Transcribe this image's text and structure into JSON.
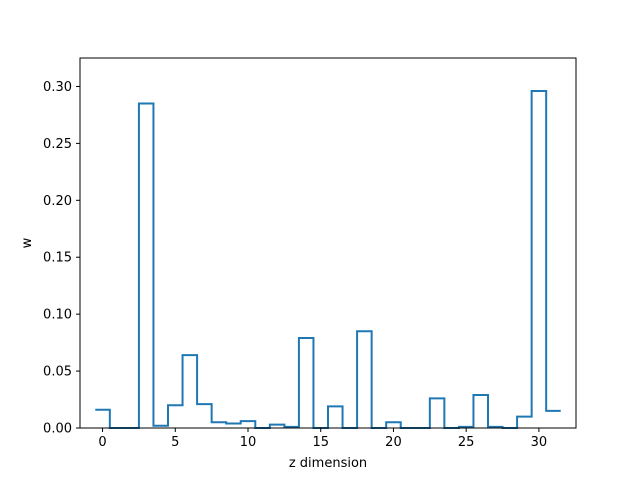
{
  "chart_data": {
    "type": "line",
    "style": "step",
    "xlabel": "z dimension",
    "ylabel": "w",
    "xlim": [
      -1.55,
      32.55
    ],
    "ylim": [
      0.0,
      0.325
    ],
    "x_ticks": [
      0,
      5,
      10,
      15,
      20,
      25,
      30
    ],
    "x_tick_labels": [
      "0",
      "5",
      "10",
      "15",
      "20",
      "25",
      "30"
    ],
    "y_ticks": [
      0.0,
      0.05,
      0.1,
      0.15,
      0.2,
      0.25,
      0.3
    ],
    "y_tick_labels": [
      "0.00",
      "0.05",
      "0.10",
      "0.15",
      "0.20",
      "0.25",
      "0.30"
    ],
    "grid": false,
    "series_color": "#1f77b4",
    "series": [
      {
        "x": [
          0,
          1,
          2,
          3,
          4,
          5,
          6,
          7,
          8,
          9,
          10,
          11,
          12,
          13,
          14,
          15,
          16,
          17,
          18,
          19,
          20,
          21,
          22,
          23,
          24,
          25,
          26,
          27,
          28,
          29,
          30,
          31
        ],
        "values": [
          0.016,
          0.0,
          0.0,
          0.285,
          0.002,
          0.02,
          0.064,
          0.021,
          0.005,
          0.004,
          0.006,
          0.0,
          0.003,
          0.001,
          0.079,
          0.0,
          0.019,
          0.0,
          0.085,
          0.0,
          0.005,
          0.0,
          0.0,
          0.026,
          0.0,
          0.001,
          0.029,
          0.001,
          0.0,
          0.01,
          0.296,
          0.015
        ]
      }
    ]
  }
}
